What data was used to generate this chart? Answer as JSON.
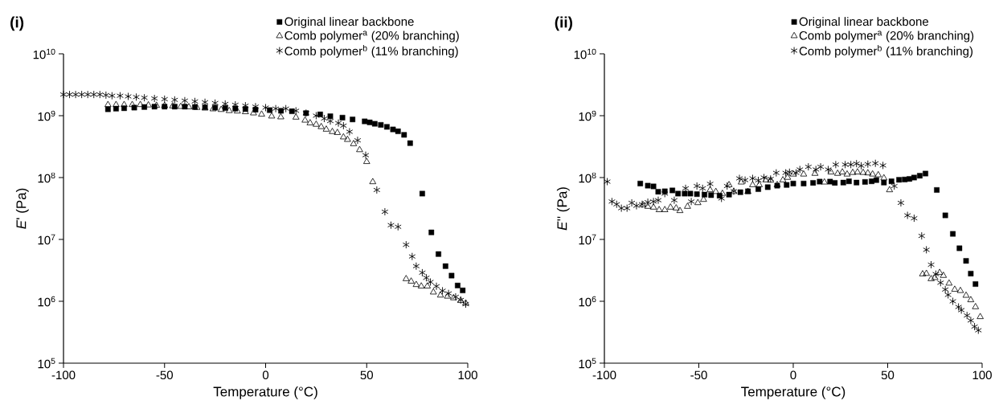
{
  "chart_data": [
    {
      "type": "scatter",
      "title": "(i)",
      "xlabel": "Temperature (°C)",
      "ylabel": "*E*' (Pa)",
      "xlim": [
        -100,
        100
      ],
      "xticks": [
        -100,
        -50,
        0,
        50,
        100
      ],
      "ylim": [
        100000.0,
        10000000000.0
      ],
      "yticks": [
        {
          "value": 100000.0,
          "label": "10$^{5}$"
        },
        {
          "value": 1000000.0,
          "label": "10$^{6}$"
        },
        {
          "value": 10000000.0,
          "label": "10$^{7}$"
        },
        {
          "value": 100000000.0,
          "label": "10$^{8}$"
        },
        {
          "value": 1000000000.0,
          "label": "10$^{9}$"
        },
        {
          "value": 10000000000.0,
          "label": "10$^{10}$"
        }
      ],
      "log": "y",
      "grid": false,
      "legend": "top right",
      "series": [
        {
          "name": "Original linear backbone",
          "color": "#000000",
          "marker": "square",
          "x": [
            -78,
            -74,
            -70,
            -65,
            -60,
            -55,
            -50,
            -45,
            -40,
            -35,
            -30,
            -25,
            -20,
            -15,
            -10,
            -5,
            2,
            7.6,
            13,
            20,
            27,
            32,
            38,
            43,
            49,
            51.5,
            54,
            57,
            60,
            63,
            65.5,
            68.5,
            71.5,
            77.5,
            82,
            85.5,
            89,
            92,
            95,
            97.5
          ],
          "values": [
            1270000000.0,
            1300000000.0,
            1320000000.0,
            1350000000.0,
            1380000000.0,
            1400000000.0,
            1400000000.0,
            1400000000.0,
            1400000000.0,
            1380000000.0,
            1370000000.0,
            1350000000.0,
            1330000000.0,
            1300000000.0,
            1280000000.0,
            1250000000.0,
            1230000000.0,
            1200000000.0,
            1180000000.0,
            1100000000.0,
            1050000000.0,
            980000000.0,
            930000000.0,
            870000000.0,
            810000000.0,
            780000000.0,
            740000000.0,
            710000000.0,
            660000000.0,
            600000000.0,
            560000000.0,
            490000000.0,
            360000000.0,
            55000000.0,
            13000000.0,
            5800000.0,
            3700000.0,
            2600000.0,
            1800000.0,
            1500000.0
          ]
        },
        {
          "name": "Comb polymer$^{a}$ (20% branching)",
          "color": "#000000",
          "marker": "triangle",
          "x": [
            -78,
            -74,
            -70,
            -66,
            -62,
            -58,
            -54,
            -50,
            -46,
            -42,
            -38,
            -34,
            -30,
            -26,
            -22,
            -18,
            -14,
            -10,
            -6,
            -2,
            3,
            7.5,
            15,
            19.5,
            22,
            25,
            27.5,
            30,
            33,
            35.5,
            38.5,
            40.5,
            43.5,
            46.5,
            50,
            53,
            69.5,
            72,
            74.5,
            77,
            80,
            83,
            86.5,
            90,
            93,
            96.5,
            99
          ],
          "values": [
            1500000000.0,
            1500000000.0,
            1500000000.0,
            1500000000.0,
            1500000000.0,
            1480000000.0,
            1460000000.0,
            1450000000.0,
            1430000000.0,
            1400000000.0,
            1380000000.0,
            1350000000.0,
            1320000000.0,
            1280000000.0,
            1250000000.0,
            1200000000.0,
            1180000000.0,
            1150000000.0,
            1100000000.0,
            1050000000.0,
            980000000.0,
            950000000.0,
            940000000.0,
            840000000.0,
            760000000.0,
            720000000.0,
            660000000.0,
            600000000.0,
            550000000.0,
            530000000.0,
            450000000.0,
            410000000.0,
            350000000.0,
            280000000.0,
            180000000.0,
            85000000.0,
            2300000.0,
            2100000.0,
            1850000.0,
            1750000.0,
            1750000.0,
            1400000.0,
            1250000.0,
            1200000.0,
            1130000.0,
            1020000.0,
            930000.0
          ]
        },
        {
          "name": "Comb polymer$^{b}$ (11% branching)",
          "color": "#000000",
          "marker": "cross",
          "x": [
            -100,
            -97,
            -94,
            -91,
            -88,
            -85,
            -82,
            -79,
            -76,
            -72,
            -68,
            -64,
            -60,
            -55,
            -50,
            -45,
            -40,
            -35,
            -30,
            -25,
            -20,
            -15,
            -10,
            -5,
            0,
            5,
            10,
            15,
            20,
            25,
            29,
            32,
            36,
            38.5,
            41.5,
            45.5,
            49.5,
            55,
            59,
            62,
            65.5,
            69.5,
            72.5,
            74.5,
            77.5,
            79.5,
            81.5,
            84.5,
            87.5,
            90.5,
            94,
            96.5,
            99
          ],
          "values": [
            2200000000.0,
            2200000000.0,
            2200000000.0,
            2200000000.0,
            2200000000.0,
            2200000000.0,
            2200000000.0,
            2150000000.0,
            2100000000.0,
            2100000000.0,
            2050000000.0,
            2000000000.0,
            1950000000.0,
            1900000000.0,
            1850000000.0,
            1800000000.0,
            1750000000.0,
            1700000000.0,
            1650000000.0,
            1600000000.0,
            1550000000.0,
            1500000000.0,
            1450000000.0,
            1400000000.0,
            1350000000.0,
            1300000000.0,
            1300000000.0,
            1200000000.0,
            1100000000.0,
            1000000000.0,
            900000000.0,
            820000000.0,
            760000000.0,
            690000000.0,
            550000000.0,
            400000000.0,
            230000000.0,
            63000000.0,
            28000000.0,
            17000000.0,
            16000000.0,
            8200000.0,
            5300000.0,
            3700000.0,
            2900000.0,
            2400000.0,
            2050000.0,
            1750000.0,
            1480000.0,
            1340000.0,
            1180000.0,
            1050000.0,
            900000.0
          ]
        }
      ]
    },
    {
      "type": "scatter",
      "title": "(ii)",
      "xlabel": "Temperature (°C)",
      "ylabel": "*E*'' (Pa)",
      "xlim": [
        -100,
        100
      ],
      "xticks": [
        -100,
        -50,
        0,
        50,
        100
      ],
      "ylim": [
        100000.0,
        10000000000.0
      ],
      "yticks": [
        {
          "value": 100000.0,
          "label": "10$^{5}$"
        },
        {
          "value": 1000000.0,
          "label": "10$^{6}$"
        },
        {
          "value": 10000000.0,
          "label": "10$^{7}$"
        },
        {
          "value": 100000000.0,
          "label": "10$^{8}$"
        },
        {
          "value": 1000000000.0,
          "label": "10$^{9}$"
        },
        {
          "value": 10000000000.0,
          "label": "10$^{10}$"
        }
      ],
      "log": "y",
      "grid": false,
      "legend": "top right",
      "series": [
        {
          "name": "Original linear backbone",
          "color": "#000000",
          "marker": "square",
          "x": [
            -81,
            -77,
            -74,
            -71.5,
            -68,
            -64,
            -61,
            -57.5,
            -54.5,
            -51,
            -47,
            -43.5,
            -39,
            -34,
            -28,
            -24,
            -18.5,
            -13.5,
            -8.5,
            -3.5,
            0,
            5.5,
            10.5,
            14,
            19.5,
            22,
            26.5,
            29.5,
            33.5,
            38,
            41.5,
            44,
            48,
            52,
            56,
            59,
            61.5,
            64,
            67,
            70,
            76,
            80.5,
            84.5,
            88,
            91.5,
            94,
            96.5
          ],
          "values": [
            80000000.0,
            74000000.0,
            72000000.0,
            59000000.0,
            60000000.0,
            62000000.0,
            55000000.0,
            55000000.0,
            55000000.0,
            54000000.0,
            53000000.0,
            52000000.0,
            51000000.0,
            53000000.0,
            58000000.0,
            60000000.0,
            65000000.0,
            70000000.0,
            74000000.0,
            76000000.0,
            80000000.0,
            80000000.0,
            82000000.0,
            86000000.0,
            86000000.0,
            82000000.0,
            83000000.0,
            87000000.0,
            83000000.0,
            85000000.0,
            87000000.0,
            91000000.0,
            83000000.0,
            87000000.0,
            92000000.0,
            93000000.0,
            95000000.0,
            100000000.0,
            107000000.0,
            116000000.0,
            63000000.0,
            24500000.0,
            12300000.0,
            7200000.0,
            4500000.0,
            2800000.0,
            1900000.0
          ]
        },
        {
          "name": "Comb polymer$^{a}$ (20% branching)",
          "color": "#000000",
          "marker": "triangle",
          "x": [
            -79.5,
            -77,
            -74,
            -71,
            -68,
            -65,
            -62,
            -60,
            -56,
            -50.5,
            -47.5,
            -44,
            -41,
            -37.5,
            -34,
            -31.5,
            -27.5,
            -24,
            -21.5,
            -18,
            -14.5,
            -12,
            -8.5,
            -5.5,
            -3,
            0,
            5.5,
            11.5,
            16.5,
            20,
            23.5,
            26,
            28.5,
            31.5,
            34,
            37,
            39.5,
            42,
            45,
            48,
            51,
            68.5,
            70.5,
            73,
            75,
            77.5,
            79.5,
            82.5,
            85.5,
            88.5,
            91.5,
            94,
            96.5,
            99
          ],
          "values": [
            36000000.0,
            34000000.0,
            33000000.0,
            30000000.0,
            30000000.0,
            33000000.0,
            32000000.0,
            29000000.0,
            34000000.0,
            39000000.0,
            44000000.0,
            63000000.0,
            59000000.0,
            55000000.0,
            76000000.0,
            59000000.0,
            84000000.0,
            59000000.0,
            76000000.0,
            76000000.0,
            91000000.0,
            90000000.0,
            76000000.0,
            91000000.0,
            100000000.0,
            113000000.0,
            113000000.0,
            116000000.0,
            84000000.0,
            122000000.0,
            116000000.0,
            122000000.0,
            113000000.0,
            120000000.0,
            122000000.0,
            120000000.0,
            118000000.0,
            113000000.0,
            110000000.0,
            98000000.0,
            63000000.0,
            2750000.0,
            2800000.0,
            2300000.0,
            2400000.0,
            2900000.0,
            2600000.0,
            1950000.0,
            1550000.0,
            1480000.0,
            1240000.0,
            1050000.0,
            810000.0,
            560000.0
          ]
        },
        {
          "name": "Comb polymer$^{b}$ (11% branching)",
          "color": "#000000",
          "marker": "cross",
          "x": [
            -98.5,
            -96,
            -93.5,
            -91,
            -88,
            -85.5,
            -83,
            -80,
            -77,
            -74,
            -71.5,
            -68,
            -63,
            -57,
            -54,
            -51,
            -48,
            -44,
            -38,
            -35,
            -31.5,
            -28.5,
            -25.5,
            -21.5,
            -18.5,
            -15.5,
            -12,
            -9,
            -4,
            -2,
            1.5,
            3.5,
            8,
            12,
            14.5,
            18.5,
            22.5,
            27.5,
            30.5,
            33.5,
            36,
            39.5,
            43.5,
            47.5,
            53.5,
            57,
            60.5,
            64,
            68,
            70.5,
            73,
            75.5,
            78,
            80.5,
            82,
            84.5,
            87.5,
            89,
            92,
            94,
            96,
            98
          ],
          "values": [
            86000000.0,
            41000000.0,
            37000000.0,
            32000000.0,
            32000000.0,
            39000000.0,
            35000000.0,
            37000000.0,
            40000000.0,
            41000000.0,
            43000000.0,
            55000000.0,
            43000000.0,
            67000000.0,
            41000000.0,
            73000000.0,
            67000000.0,
            79000000.0,
            46000000.0,
            73000000.0,
            60000000.0,
            97000000.0,
            91000000.0,
            97000000.0,
            90000000.0,
            100000000.0,
            95000000.0,
            119000000.0,
            119000000.0,
            122000000.0,
            119000000.0,
            135000000.0,
            149000000.0,
            135000000.0,
            149000000.0,
            135000000.0,
            162000000.0,
            162000000.0,
            162000000.0,
            168000000.0,
            155000000.0,
            165000000.0,
            170000000.0,
            157000000.0,
            73000000.0,
            39000000.0,
            24500000.0,
            22000000.0,
            11400000.0,
            6800000.0,
            3900000.0,
            2750000.0,
            2000000.0,
            1550000.0,
            1270000.0,
            1000000.0,
            810000.0,
            720000.0,
            590000.0,
            490000.0,
            390000.0,
            340000.0
          ]
        }
      ]
    }
  ]
}
